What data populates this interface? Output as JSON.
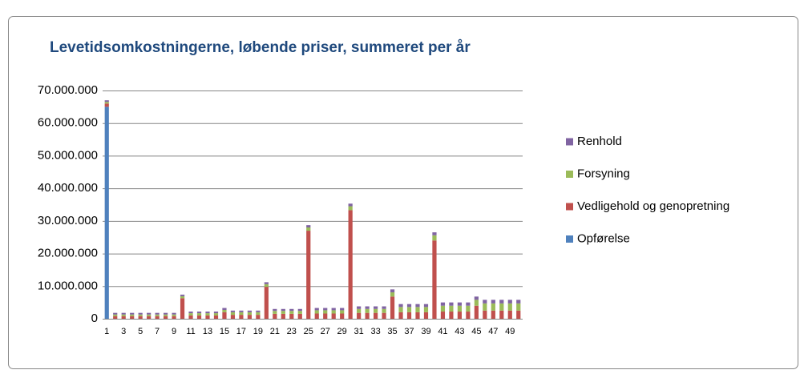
{
  "chart_data": {
    "type": "stacked_bar",
    "title": "Levetidsomkostningerne, løbende priser, summeret per år",
    "categories": [
      "1",
      null,
      "3",
      null,
      "5",
      null,
      "7",
      null,
      "9",
      null,
      "11",
      null,
      "13",
      null,
      "15",
      null,
      "17",
      null,
      "19",
      null,
      "21",
      null,
      "23",
      null,
      "25",
      null,
      "27",
      null,
      "29",
      null,
      "31",
      null,
      "33",
      null,
      "35",
      null,
      "37",
      null,
      "39",
      null,
      "41",
      null,
      "43",
      null,
      "45",
      null,
      "47",
      null,
      "49",
      null
    ],
    "series": [
      {
        "name": "Opførelse",
        "color": "#4f81bd",
        "values": [
          65000000,
          0,
          0,
          0,
          0,
          0,
          0,
          0,
          0,
          0,
          0,
          0,
          0,
          0,
          0,
          0,
          0,
          0,
          0,
          0,
          0,
          0,
          0,
          0,
          0,
          0,
          0,
          0,
          0,
          0,
          0,
          0,
          0,
          0,
          0,
          0,
          0,
          0,
          0,
          0,
          0,
          0,
          0,
          0,
          0,
          0,
          0,
          0,
          0,
          0
        ]
      },
      {
        "name": "Vedligehold og genopretning",
        "color": "#c0504d",
        "values": [
          1000000,
          800000,
          800000,
          800000,
          800000,
          800000,
          800000,
          800000,
          800000,
          6300000,
          1000000,
          1000000,
          1000000,
          1000000,
          2000000,
          1200000,
          1200000,
          1200000,
          1200000,
          9800000,
          1500000,
          1500000,
          1500000,
          1500000,
          27000000,
          1600000,
          1600000,
          1600000,
          1600000,
          33300000,
          1800000,
          1800000,
          1800000,
          1800000,
          6800000,
          2000000,
          2000000,
          2000000,
          2000000,
          24000000,
          2200000,
          2200000,
          2200000,
          2200000,
          4000000,
          2500000,
          2500000,
          2500000,
          2500000,
          2500000
        ]
      },
      {
        "name": "Forsyning",
        "color": "#9bbb59",
        "values": [
          500000,
          500000,
          500000,
          500000,
          500000,
          500000,
          500000,
          500000,
          500000,
          600000,
          700000,
          700000,
          700000,
          700000,
          700000,
          800000,
          800000,
          800000,
          800000,
          800000,
          900000,
          900000,
          900000,
          900000,
          1000000,
          1000000,
          1000000,
          1000000,
          1000000,
          1200000,
          1200000,
          1200000,
          1200000,
          1200000,
          1300000,
          1600000,
          1600000,
          1600000,
          1600000,
          1600000,
          1800000,
          1800000,
          1800000,
          1800000,
          1800000,
          2200000,
          2200000,
          2200000,
          2200000,
          2200000
        ]
      },
      {
        "name": "Renhold",
        "color": "#8064a2",
        "values": [
          500000,
          500000,
          500000,
          500000,
          500000,
          500000,
          500000,
          500000,
          500000,
          500000,
          500000,
          500000,
          500000,
          500000,
          600000,
          500000,
          500000,
          500000,
          500000,
          600000,
          600000,
          600000,
          600000,
          600000,
          700000,
          700000,
          700000,
          700000,
          700000,
          800000,
          800000,
          800000,
          800000,
          800000,
          900000,
          900000,
          900000,
          900000,
          900000,
          900000,
          1000000,
          1000000,
          1000000,
          1000000,
          1000000,
          1100000,
          1100000,
          1100000,
          1100000,
          1100000
        ]
      }
    ],
    "ylim": [
      0,
      70000000
    ],
    "yticks": [
      0,
      {
        "value": 10000000,
        "label": "10.000.000"
      },
      {
        "value": 20000000,
        "label": "20.000.000"
      },
      {
        "value": 30000000,
        "label": "30.000.000"
      },
      {
        "value": 40000000,
        "label": "40.000.000"
      },
      {
        "value": 50000000,
        "label": "50.000.000"
      },
      {
        "value": 60000000,
        "label": "60.000.000"
      },
      {
        "value": 70000000,
        "label": "70.000.000"
      }
    ],
    "grid": true,
    "legend": "right"
  }
}
